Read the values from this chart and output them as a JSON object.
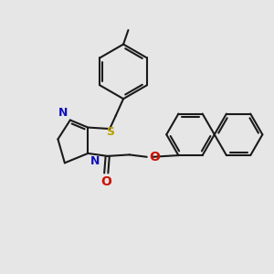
{
  "background_color": "#e6e6e6",
  "bond_color": "#1a1a1a",
  "nitrogen_color": "#1111bb",
  "oxygen_color": "#cc1100",
  "sulfur_color": "#b8a000",
  "line_width": 1.5,
  "dpi": 100,
  "figsize": [
    3.0,
    3.0
  ],
  "xlim": [
    0,
    10
  ],
  "ylim": [
    0,
    10
  ]
}
